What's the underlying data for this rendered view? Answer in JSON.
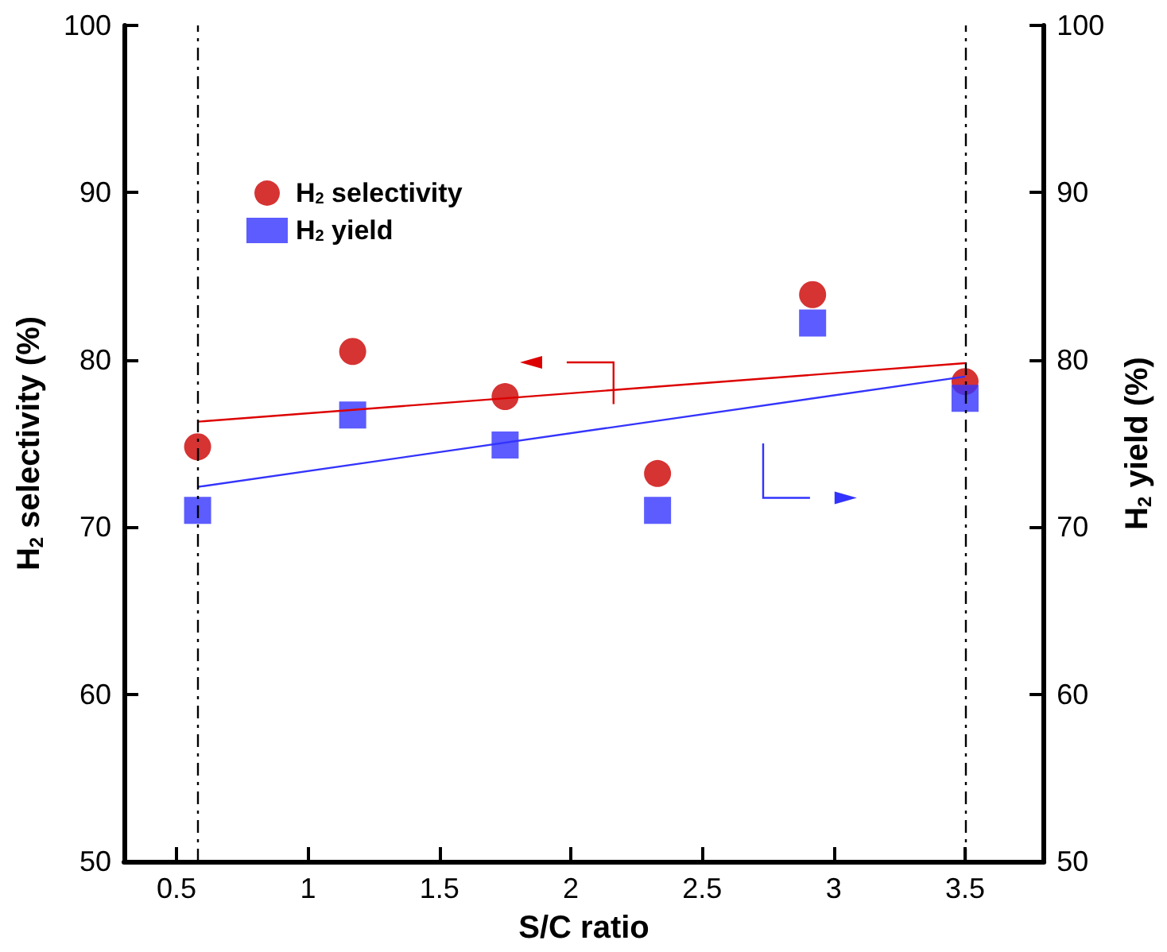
{
  "chart_data": {
    "type": "scatter",
    "xlabel": "S/C ratio",
    "ylabel": "H$_{2}$ selectivity (%)",
    "y2label": "H$_{2}$ yield (%)",
    "xlim": [
      0.3,
      3.8
    ],
    "xticks": [
      0.5,
      1,
      1.5,
      2,
      2.5,
      3,
      3.5
    ],
    "ylim": [
      50,
      100
    ],
    "yticks": [
      50,
      60,
      70,
      80,
      90,
      100
    ],
    "y2lim": [
      50,
      100
    ],
    "y2ticks": [
      50,
      60,
      70,
      80,
      90,
      100
    ],
    "grid": false,
    "legend": "top left",
    "series": [
      {
        "name": "H$_{2}$ selectivity",
        "marker": "circle",
        "color": "#cc0000",
        "x": [
          0.58,
          1.17,
          1.75,
          2.33,
          2.92,
          3.5
        ],
        "values": [
          74.8,
          80.5,
          77.8,
          73.2,
          83.9,
          78.7
        ]
      },
      {
        "name": "H$_{2}$ yield",
        "marker": "square",
        "axis": "y2",
        "color": "#3333ff",
        "x": [
          0.58,
          1.17,
          1.75,
          2.33,
          2.92,
          3.5
        ],
        "values": [
          71.0,
          76.7,
          74.9,
          71.0,
          82.2,
          77.7
        ]
      },
      {
        "type": "line",
        "marker": "none",
        "color": "#dd0000",
        "x": [
          0.58,
          3.5
        ],
        "values": [
          76.3,
          79.8
        ]
      },
      {
        "type": "line",
        "marker": "none",
        "axis": "y2",
        "color": "#3333ff",
        "x": [
          0.58,
          3.5
        ],
        "values": [
          72.4,
          79.0
        ]
      }
    ],
    "ref_lines": [
      {
        "axis": "x",
        "value": 0.58,
        "color": "#000000",
        "line_style": "dashdot"
      },
      {
        "axis": "x",
        "value": 3.5,
        "color": "#000000",
        "line_style": "dashdot"
      }
    ]
  }
}
